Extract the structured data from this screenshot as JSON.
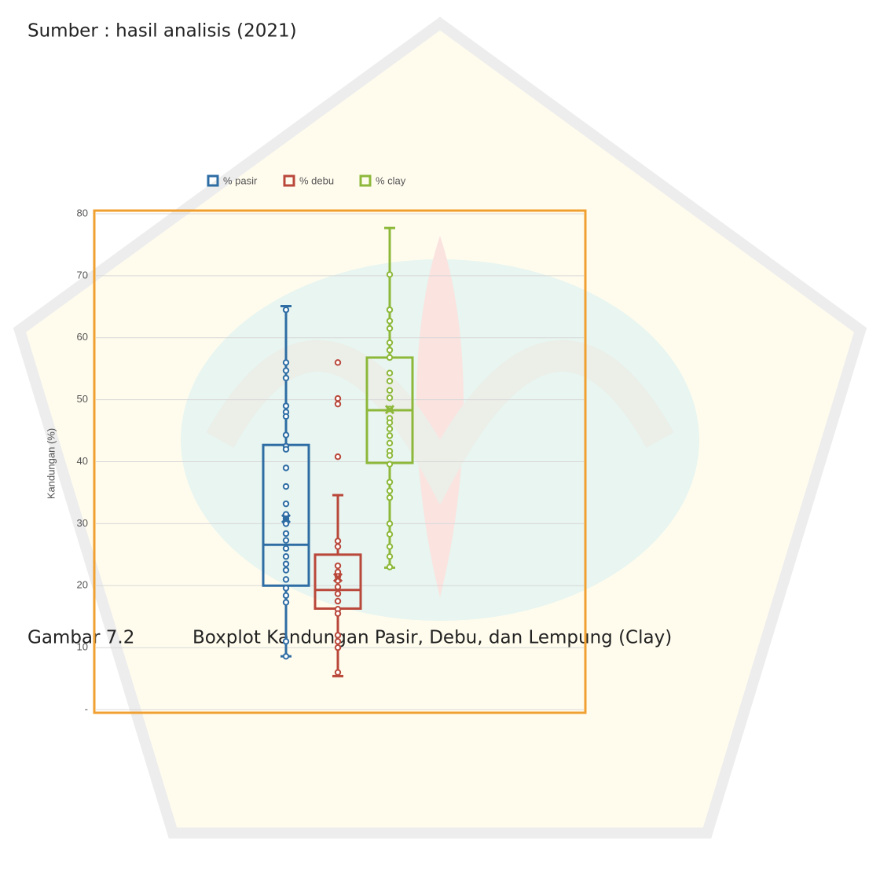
{
  "source": "Sumber : hasil analisis (2021)",
  "caption": {
    "number": "Gambar 7.2",
    "text": "Boxplot Kandungan Pasir, Debu, dan Lempung (Clay)"
  },
  "chart_data": {
    "type": "box",
    "y_label": "Kandungan (%)",
    "ylim": [
      0,
      80
    ],
    "yticks": [
      {
        "value": 0,
        "label": "-"
      },
      10,
      20,
      30,
      40,
      50,
      60,
      70,
      80
    ],
    "grid": true,
    "legend": "top",
    "series": [
      {
        "name": "% pasir",
        "color": "#2e6da4",
        "min": 8.6,
        "q1": 20.0,
        "median": 26.6,
        "q3": 42.7,
        "max": 65.1,
        "mean": 30.8,
        "points": [
          64.5,
          56,
          54.7,
          53.5,
          49,
          48,
          47.3,
          44.3,
          42.5,
          42,
          39,
          36,
          33.2,
          31.5,
          30.8,
          30,
          28.4,
          27.3,
          26,
          24.7,
          23.5,
          22.5,
          21,
          19.6,
          18.4,
          17.3,
          11,
          8.6
        ]
      },
      {
        "name": "% debu",
        "color": "#b9473a",
        "min": 5.4,
        "q1": 16.3,
        "median": 19.3,
        "q3": 25.0,
        "max": 34.6,
        "mean": 21.3,
        "points": [
          56,
          50.2,
          49.3,
          40.8,
          27.2,
          26.3,
          23.2,
          22.2,
          21.5,
          20.8,
          19.8,
          18.7,
          17.5,
          16.2,
          15.5,
          12,
          11,
          10,
          6
        ]
      },
      {
        "name": "% clay",
        "color": "#8db83a",
        "min": 22.9,
        "q1": 39.8,
        "median": 48.3,
        "q3": 56.8,
        "max": 77.7,
        "mean": 48.4,
        "points": [
          70.2,
          64.5,
          62.7,
          61.5,
          59.2,
          58,
          56.8,
          54.3,
          53,
          51.5,
          50.3,
          48.5,
          47,
          46.3,
          45.3,
          44.2,
          43,
          41.7,
          41,
          39.6,
          36.7,
          35.3,
          34.2,
          30,
          28.3,
          26.3,
          24.7,
          23
        ]
      }
    ]
  }
}
